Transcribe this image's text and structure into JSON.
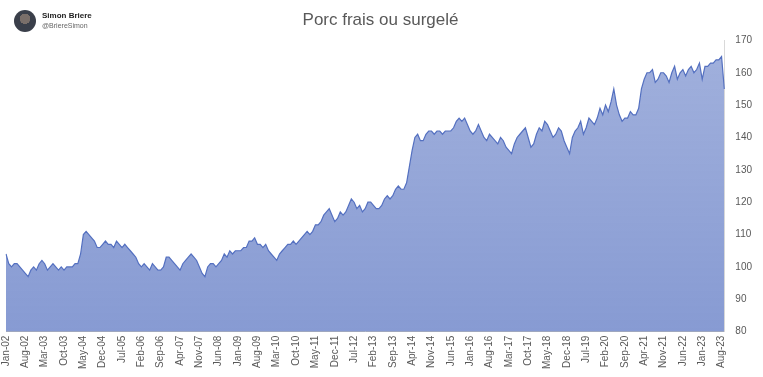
{
  "header": {
    "name": "Simon Briere",
    "handle": "@BriereSimon"
  },
  "chart_data": {
    "type": "area",
    "title": "Porc frais ou surgelé",
    "color": "#5470c0",
    "grid": false,
    "ylim": [
      80,
      170
    ],
    "yticks": [
      80,
      90,
      100,
      110,
      120,
      130,
      140,
      150,
      160,
      170
    ],
    "categories": [
      "Jan-02",
      null,
      null,
      null,
      null,
      null,
      null,
      "Aug-02",
      null,
      null,
      null,
      null,
      null,
      null,
      "Mar-03",
      null,
      null,
      null,
      null,
      null,
      null,
      "Oct-03",
      null,
      null,
      null,
      null,
      null,
      null,
      "May-04",
      null,
      null,
      null,
      null,
      null,
      null,
      "Dec-04",
      null,
      null,
      null,
      null,
      null,
      null,
      "Jul-05",
      null,
      null,
      null,
      null,
      null,
      null,
      "Feb-06",
      null,
      null,
      null,
      null,
      null,
      null,
      "Sep-06",
      null,
      null,
      null,
      null,
      null,
      null,
      "Apr-07",
      null,
      null,
      null,
      null,
      null,
      null,
      "Nov-07",
      null,
      null,
      null,
      null,
      null,
      null,
      "Jun-08",
      null,
      null,
      null,
      null,
      null,
      null,
      "Jan-09",
      null,
      null,
      null,
      null,
      null,
      null,
      "Aug-09",
      null,
      null,
      null,
      null,
      null,
      null,
      "Mar-10",
      null,
      null,
      null,
      null,
      null,
      null,
      "Oct-10",
      null,
      null,
      null,
      null,
      null,
      null,
      "May-11",
      null,
      null,
      null,
      null,
      null,
      null,
      "Dec-11",
      null,
      null,
      null,
      null,
      null,
      null,
      "Jul-12",
      null,
      null,
      null,
      null,
      null,
      null,
      "Feb-13",
      null,
      null,
      null,
      null,
      null,
      null,
      "Sep-13",
      null,
      null,
      null,
      null,
      null,
      null,
      "Apr-14",
      null,
      null,
      null,
      null,
      null,
      null,
      "Nov-14",
      null,
      null,
      null,
      null,
      null,
      null,
      "Jun-15",
      null,
      null,
      null,
      null,
      null,
      null,
      "Jan-16",
      null,
      null,
      null,
      null,
      null,
      null,
      "Aug-16",
      null,
      null,
      null,
      null,
      null,
      null,
      "Mar-17",
      null,
      null,
      null,
      null,
      null,
      null,
      "Oct-17",
      null,
      null,
      null,
      null,
      null,
      null,
      "May-18",
      null,
      null,
      null,
      null,
      null,
      null,
      "Dec-18",
      null,
      null,
      null,
      null,
      null,
      null,
      "Jul-19",
      null,
      null,
      null,
      null,
      null,
      null,
      "Feb-20",
      null,
      null,
      null,
      null,
      null,
      null,
      "Sep-20",
      null,
      null,
      null,
      null,
      null,
      null,
      "Apr-21",
      null,
      null,
      null,
      null,
      null,
      null,
      "Nov-21",
      null,
      null,
      null,
      null,
      null,
      null,
      "Jun-22",
      null,
      null,
      null,
      null,
      null,
      null,
      "Jan-23",
      null,
      null,
      null,
      null,
      null,
      null,
      "Aug-23",
      null
    ],
    "values": [
      104,
      101,
      100,
      101,
      101,
      100,
      99,
      98,
      97,
      99,
      100,
      99,
      101,
      102,
      101,
      99,
      100,
      101,
      100,
      99,
      100,
      99,
      100,
      100,
      100,
      101,
      101,
      104,
      110,
      111,
      110,
      109,
      108,
      106,
      106,
      107,
      108,
      107,
      107,
      106,
      108,
      107,
      106,
      107,
      106,
      105,
      104,
      103,
      101,
      100,
      101,
      100,
      99,
      101,
      100,
      99,
      99,
      100,
      103,
      103,
      102,
      101,
      100,
      99,
      101,
      102,
      103,
      104,
      103,
      102,
      100,
      98,
      97,
      100,
      101,
      101,
      100,
      101,
      102,
      104,
      103,
      105,
      104,
      105,
      105,
      105,
      106,
      106,
      108,
      108,
      109,
      107,
      107,
      106,
      107,
      105,
      104,
      103,
      102,
      104,
      105,
      106,
      107,
      107,
      108,
      107,
      108,
      109,
      110,
      111,
      110,
      111,
      113,
      113,
      114,
      116,
      117,
      118,
      116,
      114,
      115,
      117,
      116,
      117,
      119,
      121,
      120,
      118,
      119,
      117,
      118,
      120,
      120,
      119,
      118,
      118,
      119,
      121,
      122,
      121,
      122,
      124,
      125,
      124,
      124,
      126,
      131,
      136,
      140,
      141,
      139,
      139,
      141,
      142,
      142,
      141,
      142,
      142,
      141,
      142,
      142,
      142,
      143,
      145,
      146,
      145,
      146,
      144,
      142,
      141,
      142,
      144,
      142,
      140,
      139,
      141,
      140,
      139,
      138,
      140,
      139,
      137,
      136,
      135,
      138,
      140,
      141,
      142,
      143,
      140,
      137,
      138,
      141,
      143,
      142,
      145,
      144,
      142,
      140,
      141,
      143,
      142,
      139,
      137,
      135,
      140,
      142,
      143,
      145,
      141,
      143,
      146,
      145,
      144,
      146,
      149,
      147,
      150,
      148,
      151,
      155,
      150,
      147,
      145,
      146,
      146,
      148,
      147,
      147,
      149,
      155,
      158,
      160,
      160,
      161,
      157,
      158,
      160,
      160,
      159,
      157,
      160,
      162,
      158,
      160,
      161,
      159,
      161,
      162,
      160,
      161,
      163,
      158,
      162,
      162,
      163,
      163,
      164,
      164,
      165,
      155
    ]
  }
}
